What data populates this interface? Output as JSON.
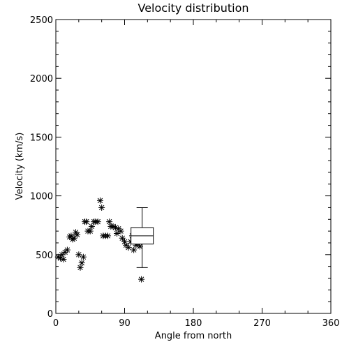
{
  "chart_data": {
    "type": "scatter",
    "title": "Velocity distribution",
    "xlabel": "Angle from north",
    "ylabel": "Velocity (km/s)",
    "xlim": [
      0,
      360
    ],
    "ylim": [
      0,
      2500
    ],
    "xticks": [
      0,
      90,
      180,
      270,
      360
    ],
    "yticks": [
      0,
      500,
      1000,
      1500,
      2000,
      2500
    ],
    "grid": false,
    "marker": "asterisk",
    "points": [
      [
        3,
        480
      ],
      [
        6,
        470
      ],
      [
        8,
        500
      ],
      [
        10,
        460
      ],
      [
        12,
        520
      ],
      [
        15,
        540
      ],
      [
        18,
        650
      ],
      [
        20,
        660
      ],
      [
        22,
        630
      ],
      [
        24,
        640
      ],
      [
        26,
        690
      ],
      [
        28,
        670
      ],
      [
        30,
        500
      ],
      [
        32,
        390
      ],
      [
        34,
        430
      ],
      [
        36,
        480
      ],
      [
        38,
        780
      ],
      [
        40,
        780
      ],
      [
        42,
        700
      ],
      [
        45,
        700
      ],
      [
        47,
        740
      ],
      [
        50,
        780
      ],
      [
        52,
        780
      ],
      [
        55,
        780
      ],
      [
        58,
        960
      ],
      [
        60,
        900
      ],
      [
        62,
        660
      ],
      [
        65,
        660
      ],
      [
        68,
        660
      ],
      [
        70,
        780
      ],
      [
        72,
        740
      ],
      [
        75,
        740
      ],
      [
        78,
        730
      ],
      [
        80,
        680
      ],
      [
        82,
        720
      ],
      [
        85,
        700
      ],
      [
        87,
        640
      ],
      [
        90,
        610
      ],
      [
        92,
        580
      ],
      [
        95,
        560
      ],
      [
        98,
        610
      ],
      [
        100,
        660
      ],
      [
        102,
        540
      ],
      [
        105,
        580
      ],
      [
        107,
        600
      ],
      [
        110,
        570
      ],
      [
        112,
        290
      ]
    ],
    "boxplot": {
      "x": 113,
      "min": 390,
      "q1": 590,
      "median": 660,
      "q3": 730,
      "max": 900
    }
  }
}
